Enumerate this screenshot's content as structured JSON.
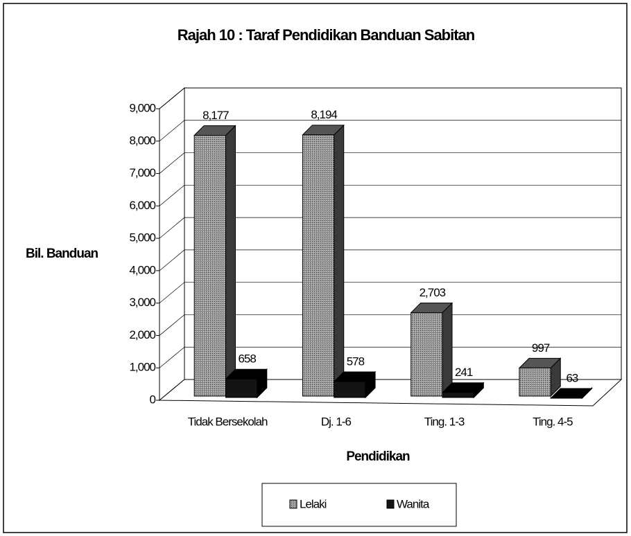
{
  "chart_data": {
    "type": "bar3d",
    "title": "Rajah 10 : Taraf Pendidikan Banduan Sabitan",
    "y_label": "Bil. Banduan",
    "x_label": "Pendidikan",
    "categories": [
      "Tidak Bersekolah",
      "Dj. 1-6",
      "Ting. 1-3",
      "Ting. 4-5"
    ],
    "series": [
      {
        "name": "Lelaki",
        "color": "#8c8c8c",
        "values": [
          8177,
          8194,
          2703,
          997
        ],
        "value_labels": [
          "8,177",
          "8,194",
          "2,703",
          "997"
        ]
      },
      {
        "name": "Wanita",
        "color": "#141414",
        "values": [
          658,
          578,
          241,
          63
        ],
        "value_labels": [
          "658",
          "578",
          "241",
          "63"
        ]
      }
    ],
    "ylim": [
      0,
      9000
    ],
    "yticks": [
      0,
      {
        "value": 1000,
        "label": "1,000"
      },
      {
        "value": 2000,
        "label": "2,000"
      },
      {
        "value": 3000,
        "label": "3,000"
      },
      {
        "value": 4000,
        "label": "4,000"
      },
      {
        "value": 5000,
        "label": "5,000"
      },
      {
        "value": 6000,
        "label": "6,000"
      },
      {
        "value": 7000,
        "label": "7,000"
      },
      {
        "value": 8000,
        "label": "8,000"
      },
      {
        "value": 9000,
        "label": "9,000"
      }
    ],
    "grid": true,
    "legend": "bottom"
  }
}
